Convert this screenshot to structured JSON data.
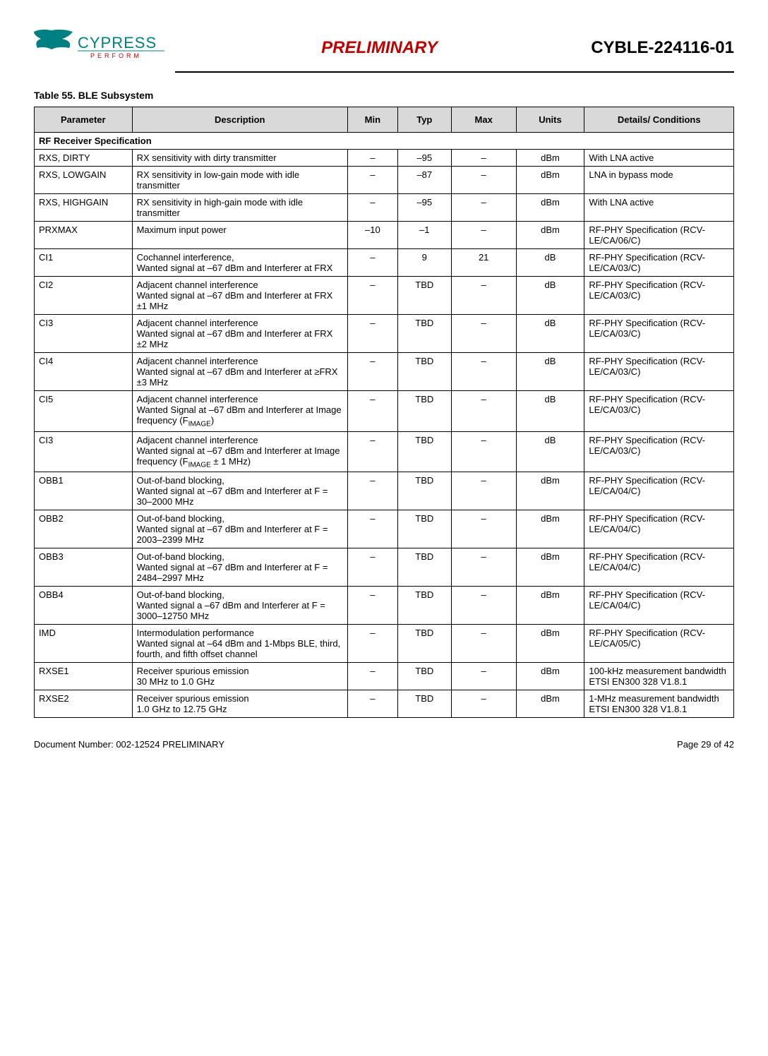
{
  "header": {
    "preliminary": "PRELIMINARY",
    "part_number": "CYBLE-224116-01",
    "logo_text_main": "CYPRESS",
    "logo_text_sub": "P E R F O R M"
  },
  "table": {
    "title": "Table 55.  BLE Subsystem",
    "columns": [
      "Parameter",
      "Description",
      "Min",
      "Typ",
      "Max",
      "Units",
      "Details/\nConditions"
    ],
    "section_title": "RF Receiver Specification",
    "rows": [
      {
        "param": "RXS, DIRTY",
        "desc": "RX sensitivity with dirty transmitter",
        "min": "–",
        "typ": "–95",
        "max": "–",
        "units": "dBm",
        "det": "With LNA active"
      },
      {
        "param": "RXS, LOWGAIN",
        "desc": "RX sensitivity in low-gain mode with idle transmitter",
        "min": "–",
        "typ": "–87",
        "max": "–",
        "units": "dBm",
        "det": "LNA in bypass mode"
      },
      {
        "param": "RXS, HIGHGAIN",
        "desc": "RX sensitivity in high-gain mode with idle transmitter",
        "min": "–",
        "typ": "–95",
        "max": "–",
        "units": "dBm",
        "det": "With LNA active"
      },
      {
        "param": "PRXMAX",
        "desc": "Maximum input power",
        "min": "–10",
        "typ": "–1",
        "max": "–",
        "units": "dBm",
        "det": "RF-PHY Specification (RCV-LE/CA/06/C)"
      },
      {
        "param": "CI1",
        "desc": "Cochannel interference,\nWanted signal at –67 dBm and Interferer at FRX",
        "min": "–",
        "typ": "9",
        "max": "21",
        "units": "dB",
        "det": "RF-PHY Specification (RCV-LE/CA/03/C)"
      },
      {
        "param": "CI2",
        "desc": "Adjacent channel interference\nWanted signal at –67 dBm and Interferer at FRX ±1 MHz",
        "min": "–",
        "typ": "TBD",
        "max": "–",
        "units": "dB",
        "det": "RF-PHY Specification (RCV-LE/CA/03/C)"
      },
      {
        "param": "CI3",
        "desc": "Adjacent channel interference\nWanted signal at –67 dBm and Interferer at FRX ±2 MHz",
        "min": "–",
        "typ": "TBD",
        "max": "–",
        "units": "dB",
        "det": "RF-PHY Specification (RCV-LE/CA/03/C)"
      },
      {
        "param": "CI4",
        "desc": "Adjacent channel interference\nWanted signal at –67 dBm and Interferer at ≥FRX ±3 MHz",
        "min": "–",
        "typ": "TBD",
        "max": "–",
        "units": "dB",
        "det": "RF-PHY Specification (RCV-LE/CA/03/C)"
      },
      {
        "param": "CI5",
        "desc_html": "Adjacent channel interference\nWanted Signal at –67 dBm and Interferer at Image frequency (F<sub>IMAGE</sub>)",
        "min": "–",
        "typ": "TBD",
        "max": "–",
        "units": "dB",
        "det": "RF-PHY Specification (RCV-LE/CA/03/C)"
      },
      {
        "param": "CI3",
        "desc_html": "Adjacent channel interference\nWanted signal at –67 dBm and Interferer at Image frequency (F<sub>IMAGE</sub> ± 1 MHz)",
        "min": "–",
        "typ": "TBD",
        "max": "–",
        "units": "dB",
        "det": "RF-PHY Specification (RCV-LE/CA/03/C)"
      },
      {
        "param": "OBB1",
        "desc": "Out-of-band blocking,\nWanted signal at –67 dBm and Interferer at F = 30–2000 MHz",
        "min": "–",
        "typ": "TBD",
        "max": "–",
        "units": "dBm",
        "det": "RF-PHY Specification (RCV-LE/CA/04/C)"
      },
      {
        "param": "OBB2",
        "desc": "Out-of-band blocking,\nWanted signal at –67 dBm and Interferer at F = 2003–2399 MHz",
        "min": "–",
        "typ": "TBD",
        "max": "–",
        "units": "dBm",
        "det": "RF-PHY Specification (RCV-LE/CA/04/C)"
      },
      {
        "param": "OBB3",
        "desc": "Out-of-band blocking,\nWanted signal at –67 dBm and Interferer at F = 2484–2997 MHz",
        "min": "–",
        "typ": "TBD",
        "max": "–",
        "units": "dBm",
        "det": "RF-PHY Specification (RCV-LE/CA/04/C)"
      },
      {
        "param": "OBB4",
        "desc": "Out-of-band blocking,\nWanted signal a –67 dBm and Interferer at F = 3000–12750 MHz",
        "min": "–",
        "typ": "TBD",
        "max": "–",
        "units": "dBm",
        "det": "RF-PHY Specification (RCV-LE/CA/04/C)"
      },
      {
        "param": "IMD",
        "desc": "Intermodulation performance\nWanted signal at –64 dBm and 1-Mbps BLE, third, fourth, and fifth offset channel",
        "min": "–",
        "typ": "TBD",
        "max": "–",
        "units": "dBm",
        "det": "RF-PHY Specification (RCV-LE/CA/05/C)"
      },
      {
        "param": "RXSE1",
        "desc": "Receiver spurious emission\n30 MHz to 1.0 GHz",
        "min": "–",
        "typ": "TBD",
        "max": "–",
        "units": "dBm",
        "det": "100-kHz measurement bandwidth\nETSI EN300 328 V1.8.1"
      },
      {
        "param": "RXSE2",
        "desc": "Receiver spurious emission\n1.0 GHz to 12.75 GHz",
        "min": "–",
        "typ": "TBD",
        "max": "–",
        "units": "dBm",
        "det": "1-MHz measurement bandwidth\nETSI EN300 328 V1.8.1"
      }
    ]
  },
  "footer": {
    "doc_number": "Document Number: 002-12524 PRELIMINARY",
    "page": "Page 29 of 42"
  },
  "colors": {
    "preliminary": "#c00000",
    "header_bg": "#d9d9d9",
    "border": "#000000",
    "text": "#000000",
    "logo_teal": "#008080"
  }
}
